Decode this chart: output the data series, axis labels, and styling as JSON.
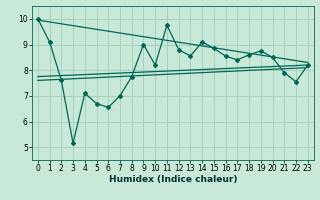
{
  "xlabel": "Humidex (Indice chaleur)",
  "ylabel": "",
  "bg_color": "#c8e8d8",
  "grid_color": "#a8cfc0",
  "line_color": "#006655",
  "xlim": [
    -0.5,
    23.5
  ],
  "ylim": [
    4.5,
    10.5
  ],
  "xticks": [
    0,
    1,
    2,
    3,
    4,
    5,
    6,
    7,
    8,
    9,
    10,
    11,
    12,
    13,
    14,
    15,
    16,
    17,
    18,
    19,
    20,
    21,
    22,
    23
  ],
  "yticks": [
    5,
    6,
    7,
    8,
    9,
    10
  ],
  "main_x": [
    0,
    1,
    2,
    3,
    4,
    5,
    6,
    7,
    8,
    9,
    10,
    11,
    12,
    13,
    14,
    15,
    16,
    17,
    18,
    19,
    20,
    21,
    22,
    23
  ],
  "main_y": [
    10.0,
    9.1,
    7.6,
    5.15,
    7.1,
    6.7,
    6.55,
    7.0,
    7.75,
    9.0,
    8.2,
    9.75,
    8.8,
    8.55,
    9.1,
    8.85,
    8.55,
    8.4,
    8.6,
    8.75,
    8.5,
    7.9,
    7.55,
    8.2
  ],
  "upper_line_x": [
    0,
    23
  ],
  "upper_line_y": [
    9.95,
    8.3
  ],
  "lower_line_x": [
    0,
    23
  ],
  "lower_line_y": [
    7.6,
    8.1
  ],
  "mid_line_x": [
    0,
    23
  ],
  "mid_line_y": [
    7.75,
    8.2
  ]
}
